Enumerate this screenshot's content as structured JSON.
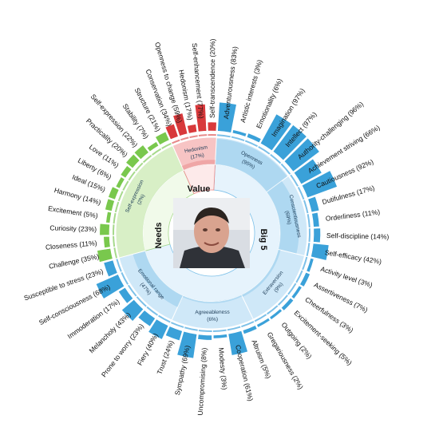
{
  "chart_data": {
    "type": "sunburst",
    "title": "",
    "colors": {
      "big5_inner": "#e6f3fc",
      "big5_mid": "#cfe8f8",
      "big5_bar": "#3aa1d9",
      "big5_line": "#7cc0e8",
      "big5_text": "#2a7fb6",
      "needs_inner": "#f1faea",
      "needs_mid": "#d8efc6",
      "needs_bar": "#79c84d",
      "needs_line": "#a6d98b",
      "value_inner": "#fdeaea",
      "value_mid": "#f7c4c4",
      "value_bar": "#d8393b",
      "value_line": "#e88a8a"
    },
    "categories": [
      {
        "id": "big5",
        "label": "Big 5",
        "traits": [
          {
            "label": "Openness",
            "value": "(95%)",
            "facets": [
              {
                "label": "Adventurousness (83%)",
                "value": 83
              },
              {
                "label": "Artistic interests (3%)",
                "value": 3
              },
              {
                "label": "Emotionality (6%)",
                "value": 6
              },
              {
                "label": "Imagination (97%)",
                "value": 97
              },
              {
                "label": "Intellect (97%)",
                "value": 97
              },
              {
                "label": "Authority-challenging (96%)",
                "value": 96
              }
            ]
          },
          {
            "label": "Conscientiousness",
            "value": "(69%)",
            "facets": [
              {
                "label": "Achievement striving (66%)",
                "value": 66
              },
              {
                "label": "Cautiousness (92%)",
                "value": 92
              },
              {
                "label": "Dutifulness (17%)",
                "value": 17
              },
              {
                "label": "Orderliness (11%)",
                "value": 11
              },
              {
                "label": "Self-discipline (14%)",
                "value": 14
              },
              {
                "label": "Self-efficacy (42%)",
                "value": 42
              }
            ]
          },
          {
            "label": "Extraversion",
            "value": "(9%)",
            "facets": [
              {
                "label": "Activity level (3%)",
                "value": 3
              },
              {
                "label": "Assertiveness (7%)",
                "value": 7
              },
              {
                "label": "Cheerfulness (3%)",
                "value": 3
              },
              {
                "label": "Excitement-seeking (5%)",
                "value": 5
              },
              {
                "label": "Outgoing (2%)",
                "value": 2
              },
              {
                "label": "Gregariousness (2%)",
                "value": 2
              }
            ]
          },
          {
            "label": "Agreeableness",
            "value": "(6%)",
            "facets": [
              {
                "label": "Altruism (5%)",
                "value": 5
              },
              {
                "label": "Cooperation (61%)",
                "value": 61
              },
              {
                "label": "Modesty (3%)",
                "value": 3
              },
              {
                "label": "Uncompromising (8%)",
                "value": 8
              },
              {
                "label": "Sympathy (69%)",
                "value": 69
              },
              {
                "label": "Trust (24%)",
                "value": 24
              }
            ]
          },
          {
            "label": "Emotional range",
            "value": "(47%)",
            "facets": [
              {
                "label": "Fiery (40%)",
                "value": 40
              },
              {
                "label": "Prone to worry (23%)",
                "value": 23
              },
              {
                "label": "Melancholy (43%)",
                "value": 43
              },
              {
                "label": "Immoderation (17%)",
                "value": 17
              },
              {
                "label": "Self-consciousness (68%)",
                "value": 68
              },
              {
                "label": "Susceptible to stress (23%)",
                "value": 23
              }
            ]
          }
        ]
      },
      {
        "id": "needs",
        "label": "Needs",
        "traits": [
          {
            "label": "Self-expression",
            "value": "(2%)",
            "facets": [
              {
                "label": "Challenge (35%)",
                "value": 35
              },
              {
                "label": "Closeness (11%)",
                "value": 11
              },
              {
                "label": "Curiosity (23%)",
                "value": 23
              },
              {
                "label": "Excitement (5%)",
                "value": 5
              },
              {
                "label": "Harmony (14%)",
                "value": 14
              },
              {
                "label": "Ideal (15%)",
                "value": 15
              },
              {
                "label": "Liberty (6%)",
                "value": 6
              },
              {
                "label": "Love (11%)",
                "value": 11
              },
              {
                "label": "Practicality (20%)",
                "value": 20
              },
              {
                "label": "Self-expression (22%)",
                "value": 22
              },
              {
                "label": "Stability (7%)",
                "value": 7
              },
              {
                "label": "Structure (21%)",
                "value": 21
              }
            ]
          }
        ]
      },
      {
        "id": "value",
        "label": "Value",
        "traits": [
          {
            "label": "Hedonism",
            "value": "(17%)",
            "facets": [
              {
                "label": "Conservation (34%)",
                "value": 34
              },
              {
                "label": "Openness to change (59%)",
                "value": 59
              },
              {
                "label": "Hedonism (17%)",
                "value": 17
              },
              {
                "label": "Self-enhancement (77%)",
                "value": 77
              },
              {
                "label": "Self-transcendence (20%)",
                "value": 20
              }
            ]
          }
        ]
      }
    ]
  }
}
